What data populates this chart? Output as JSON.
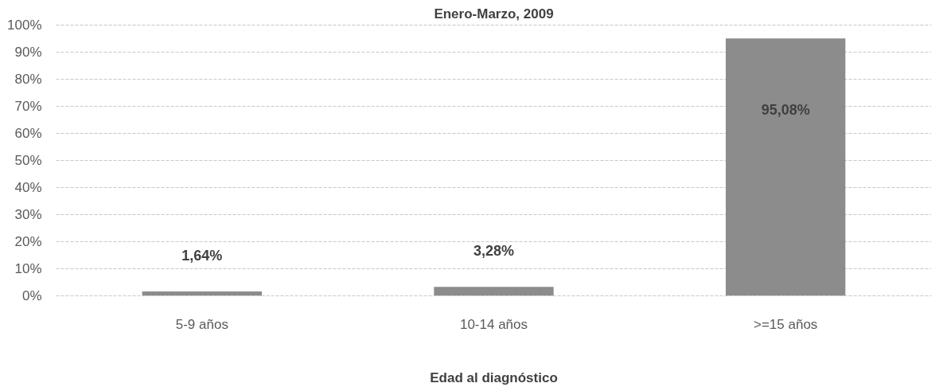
{
  "chart_data": {
    "type": "bar",
    "title": "Enero-Marzo, 2009",
    "xlabel": "Edad al diagnóstico",
    "categories": [
      "5-9 años",
      "10-14 años",
      ">=15 años"
    ],
    "values": [
      1.64,
      3.28,
      95.08
    ],
    "value_labels": [
      "1,64%",
      "3,28%",
      "95,08%"
    ],
    "color": "#8c8c8c",
    "ylim": [
      0,
      100
    ],
    "yticks": [
      {
        "value": 0,
        "label": "0%"
      },
      {
        "value": 10,
        "label": "10%"
      },
      {
        "value": 20,
        "label": "20%"
      },
      {
        "value": 30,
        "label": "30%"
      },
      {
        "value": 40,
        "label": "40%"
      },
      {
        "value": 50,
        "label": "50%"
      },
      {
        "value": 60,
        "label": "60%"
      },
      {
        "value": 70,
        "label": "70%"
      },
      {
        "value": 80,
        "label": "80%"
      },
      {
        "value": 90,
        "label": "90%"
      },
      {
        "value": 100,
        "label": "100%"
      }
    ],
    "grid": "y"
  }
}
